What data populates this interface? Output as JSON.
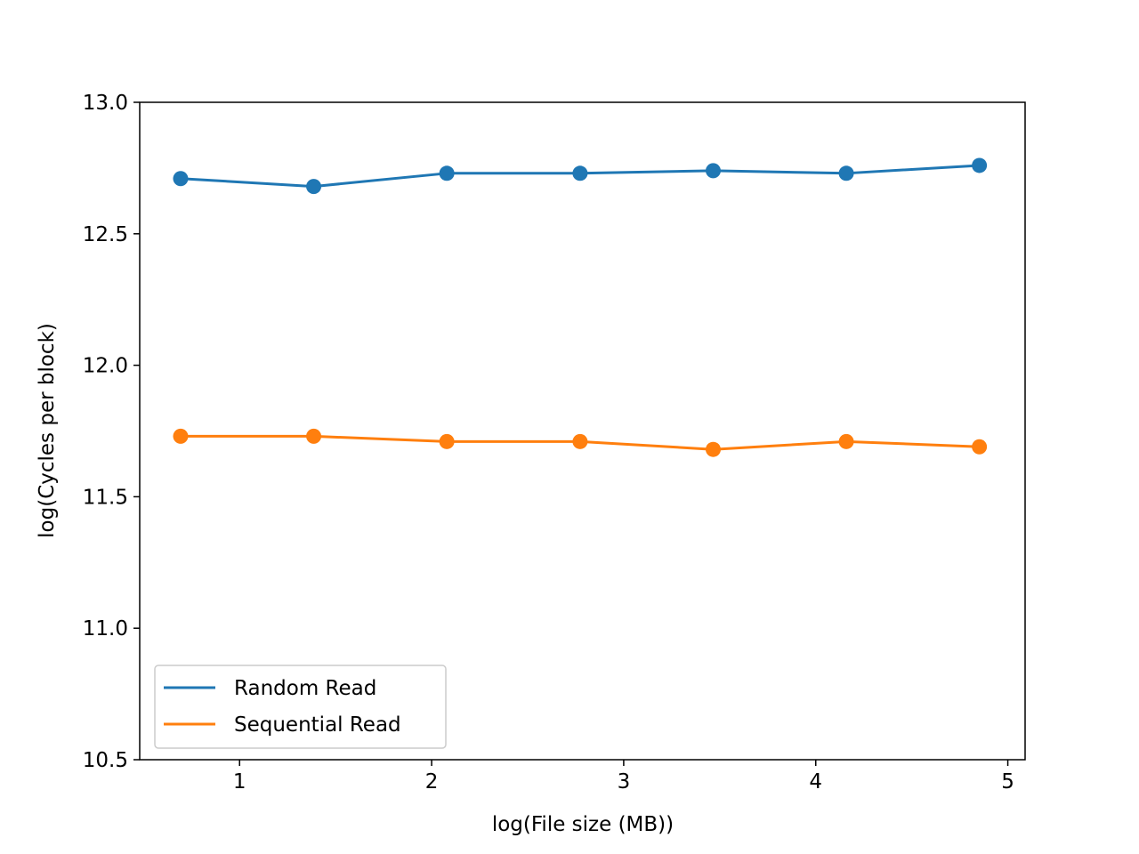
{
  "chart_data": {
    "type": "line",
    "xlabel": "log(File size (MB))",
    "ylabel": "log(Cycles per block)",
    "xlim": [
      0.48,
      5.09
    ],
    "ylim": [
      10.5,
      13.0
    ],
    "xticks": [
      1,
      2,
      3,
      4,
      5
    ],
    "xtick_labels": [
      "1",
      "2",
      "3",
      "4",
      "5"
    ],
    "yticks": [
      10.5,
      11.0,
      11.5,
      12.0,
      12.5,
      13.0
    ],
    "ytick_labels": [
      "10.5",
      "11.0",
      "11.5",
      "12.0",
      "12.5",
      "13.0"
    ],
    "grid": false,
    "legend_position": "lower-left",
    "x": [
      0.693,
      1.386,
      2.079,
      2.773,
      3.466,
      4.159,
      4.852
    ],
    "series": [
      {
        "name": "Random Read",
        "color": "#1f77b4",
        "values": [
          12.71,
          12.68,
          12.73,
          12.73,
          12.74,
          12.73,
          12.76
        ]
      },
      {
        "name": "Sequential Read",
        "color": "#ff7f0e",
        "values": [
          11.73,
          11.73,
          11.71,
          11.71,
          11.68,
          11.71,
          11.69
        ]
      }
    ]
  }
}
